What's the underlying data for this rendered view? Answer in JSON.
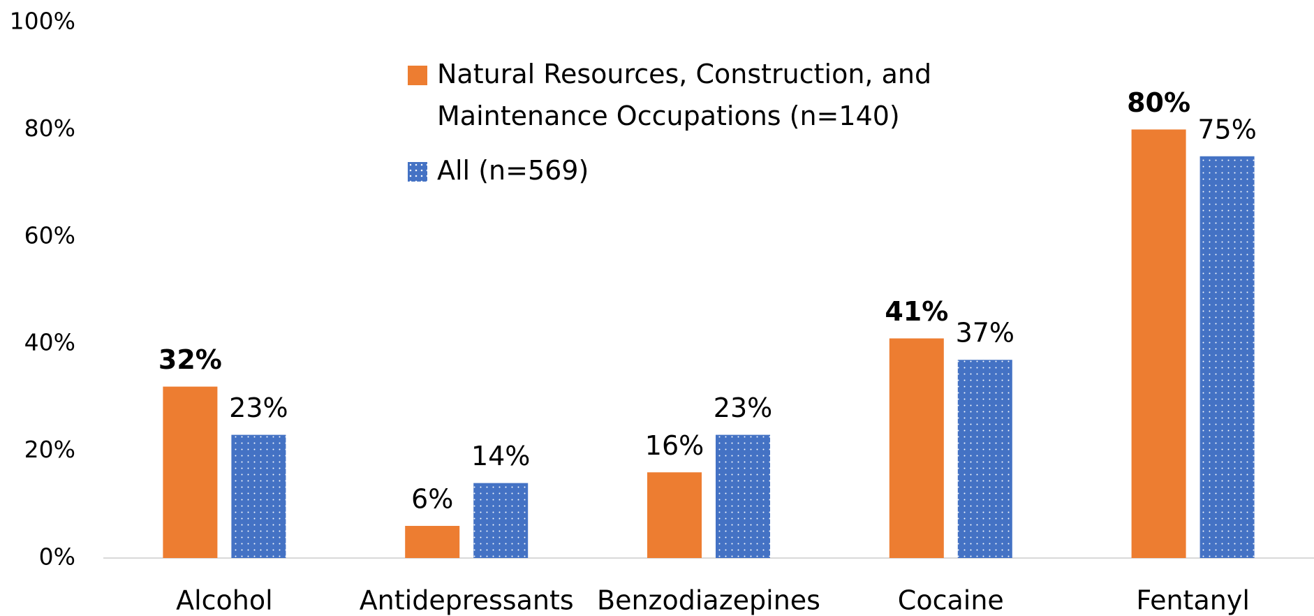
{
  "chart_data": {
    "type": "bar",
    "categories": [
      "Alcohol",
      "Antidepressants",
      "Benzodiazepines",
      "Cocaine",
      "Fentanyl"
    ],
    "series": [
      {
        "name": "Natural Resources, Construction, and Maintenance Occupations (n=140)",
        "color": "#ed7d31",
        "values": [
          32,
          6,
          16,
          41,
          80
        ],
        "value_labels": [
          "32%",
          "6%",
          "16%",
          "41%",
          "80%"
        ],
        "label_bold": [
          true,
          false,
          false,
          true,
          true
        ]
      },
      {
        "name": "All (n=569)",
        "color": "#4472c4",
        "pattern": "dots",
        "values": [
          23,
          14,
          23,
          37,
          75
        ],
        "value_labels": [
          "23%",
          "14%",
          "23%",
          "37%",
          "75%"
        ],
        "label_bold": [
          false,
          false,
          false,
          false,
          false
        ]
      }
    ],
    "ylim": [
      0,
      100
    ],
    "yticks": [
      {
        "value": 0,
        "label": "0%"
      },
      {
        "value": 20,
        "label": "20%"
      },
      {
        "value": 40,
        "label": "40%"
      },
      {
        "value": 60,
        "label": "60%"
      },
      {
        "value": 80,
        "label": "80%"
      },
      {
        "value": 100,
        "label": "100%"
      }
    ],
    "grid": false
  }
}
